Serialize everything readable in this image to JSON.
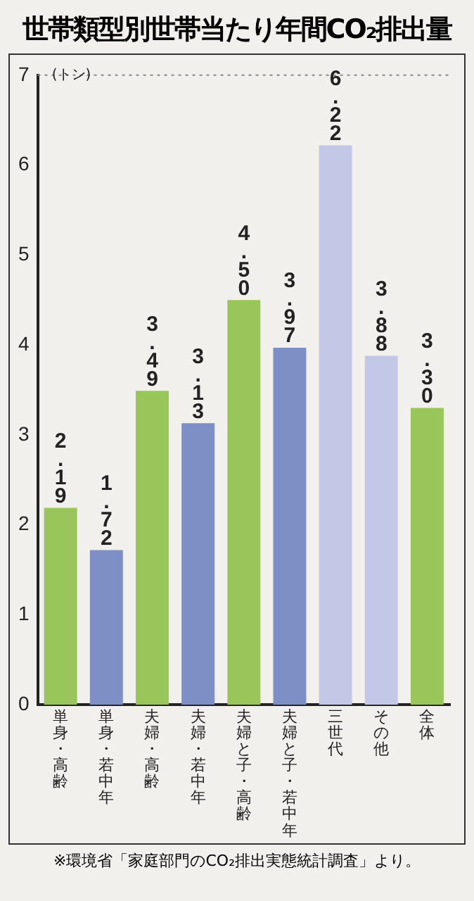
{
  "chart_data": {
    "type": "bar",
    "title": "世帯類型別世帯当たり年間CO₂排出量",
    "ylabel": "(トン)",
    "categories": [
      "単身・高齢",
      "単身・若中年",
      "夫婦・高齢",
      "夫婦・若中年",
      "夫婦と子・高齢",
      "夫婦と子・若中年",
      "三世代",
      "その他",
      "全体"
    ],
    "values": [
      2.19,
      1.72,
      3.49,
      3.13,
      4.5,
      3.97,
      6.22,
      3.88,
      3.3
    ],
    "colors": [
      "#99c65a",
      "#7d8fc4",
      "#99c65a",
      "#7d8fc4",
      "#99c65a",
      "#7d8fc4",
      "#c3c8e6",
      "#c3c8e6",
      "#99c65a"
    ],
    "value_labels": [
      "2.19",
      "1.72",
      "3.49",
      "3.13",
      "4.50",
      "3.97",
      "6.22",
      "3.88",
      "3.30"
    ],
    "ylim": [
      0,
      7
    ],
    "yticks": [
      0,
      1,
      2,
      3,
      4,
      5,
      6,
      7
    ],
    "grid": false,
    "ref_lines": [
      {
        "axis": "y",
        "value": 7,
        "line_style": "dotted",
        "color": "#888888"
      }
    ],
    "annotations": [
      "※環境省「家庭部門のCO₂排出実態統計調査」より。"
    ]
  }
}
